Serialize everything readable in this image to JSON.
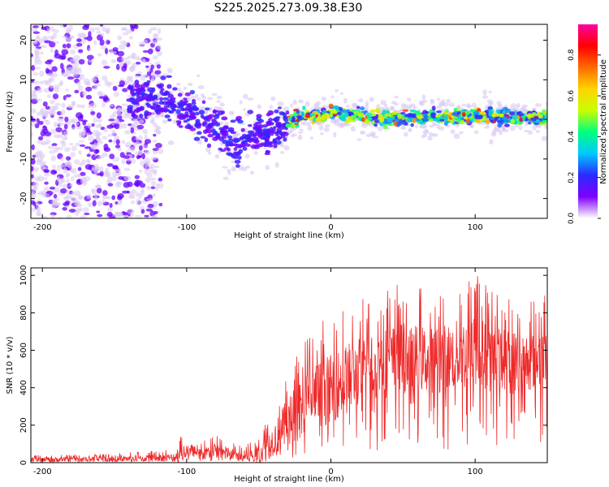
{
  "title": "S225.2025.273.09.38.E30",
  "colors": {
    "snr_line": "#ee2a2a",
    "heatmap_points": "#6a00ff",
    "heatmap_faint": "#d9c8f2",
    "colorbar_stops": [
      "#ffffff",
      "#7f00ff",
      "#2a2aff",
      "#00c8ff",
      "#00ff7f",
      "#c8ff00",
      "#ffd400",
      "#ff6a00",
      "#ff0000",
      "#ff00a0"
    ]
  },
  "chart_data": [
    {
      "type": "heatmap",
      "panel": "spectrogram",
      "xlabel": "Height of straight line (km)",
      "ylabel": "Frequency (Hz)",
      "xlim": [
        -208,
        150
      ],
      "ylim": [
        -25,
        24
      ],
      "xticks": [
        -200,
        -100,
        0,
        100
      ],
      "yticks": [
        20,
        10,
        0,
        -10,
        -20
      ],
      "ridge": {
        "description_of_trend": "frequency versus height",
        "x": [
          -130,
          -110,
          -95,
          -80,
          -65,
          -55,
          -45,
          -35,
          -25,
          -15,
          -5,
          0,
          20,
          40,
          60,
          80,
          100,
          120,
          145
        ],
        "y": [
          5,
          4,
          1,
          -2,
          -6,
          -3,
          -4,
          -2,
          0,
          1,
          1,
          2,
          1,
          0.5,
          0.5,
          0.5,
          1,
          0.5,
          0.5
        ]
      },
      "colorbar": {
        "label": "Normalized spectral amplitude",
        "ticks": [
          0.0,
          0.2,
          0.4,
          0.6,
          0.8
        ],
        "range": [
          0,
          0.95
        ]
      }
    },
    {
      "type": "line",
      "panel": "snr",
      "xlabel": "Height of straight line (km)",
      "ylabel": "SNR (10 * v/v)",
      "xlim": [
        -208,
        150
      ],
      "ylim": [
        0,
        1040
      ],
      "xticks": [
        -200,
        -100,
        0,
        100
      ],
      "yticks": [
        0,
        200,
        400,
        600,
        800,
        1000
      ],
      "envelope": {
        "x": [
          -208,
          -150,
          -110,
          -105,
          -100,
          -90,
          -80,
          -70,
          -60,
          -50,
          -40,
          -30,
          -20,
          -10,
          0,
          10,
          20,
          30,
          40,
          50,
          60,
          70,
          80,
          90,
          100,
          110,
          120,
          130,
          140,
          150
        ],
        "mean": [
          15,
          18,
          25,
          40,
          50,
          45,
          60,
          45,
          25,
          40,
          110,
          200,
          280,
          340,
          380,
          420,
          470,
          500,
          520,
          540,
          540,
          530,
          540,
          560,
          560,
          540,
          520,
          520,
          530,
          560
        ],
        "peak": [
          40,
          50,
          70,
          160,
          90,
          110,
          150,
          120,
          80,
          160,
          290,
          500,
          650,
          750,
          780,
          850,
          880,
          900,
          950,
          960,
          940,
          920,
          950,
          980,
          1040,
          960,
          920,
          900,
          880,
          900
        ]
      }
    }
  ]
}
